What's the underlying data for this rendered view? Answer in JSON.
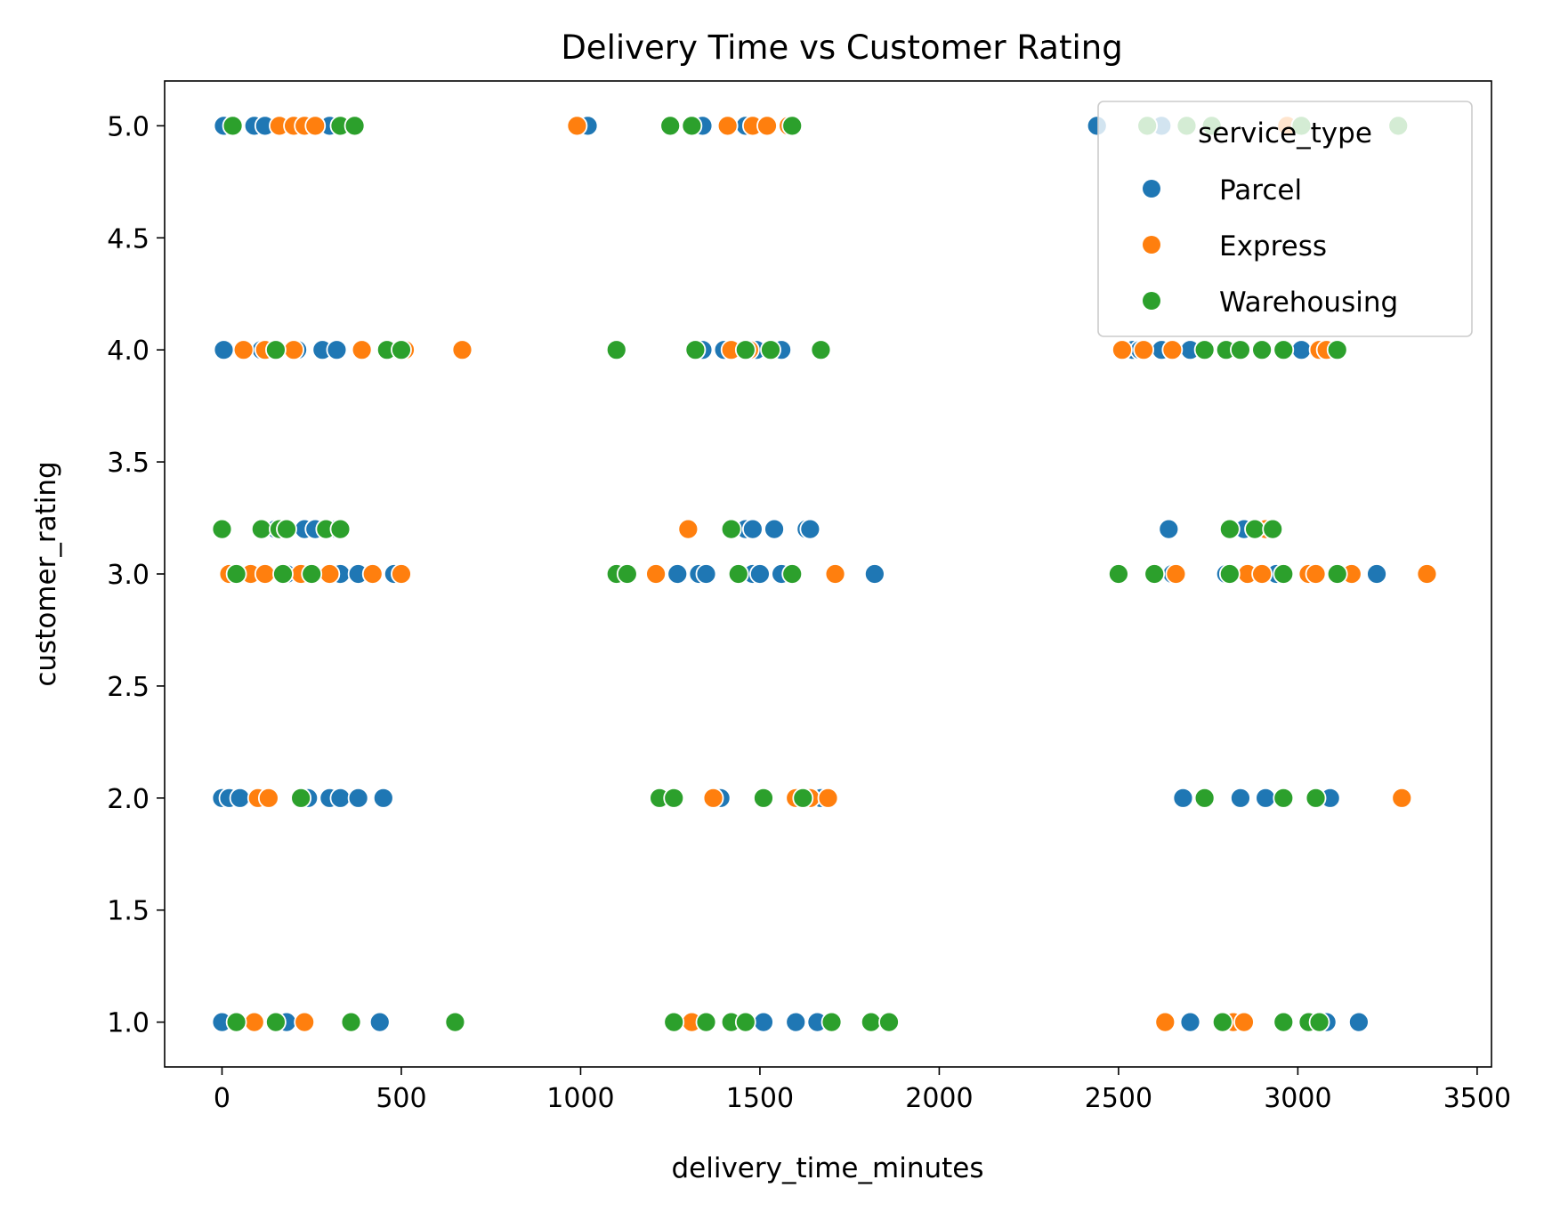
{
  "chart_data": {
    "type": "scatter",
    "title": "Delivery Time vs Customer Rating",
    "xlabel": "delivery_time_minutes",
    "ylabel": "customer_rating",
    "xlim": [
      -160,
      3540
    ],
    "ylim": [
      0.8,
      5.2
    ],
    "xticks": [
      0,
      500,
      1000,
      1500,
      2000,
      2500,
      3000,
      3500
    ],
    "yticks": [
      1.0,
      1.5,
      2.0,
      2.5,
      3.0,
      3.5,
      4.0,
      4.5,
      5.0
    ],
    "xtick_labels": [
      "0",
      "500",
      "1000",
      "1500",
      "2000",
      "2500",
      "3000",
      "3500"
    ],
    "ytick_labels": [
      "1.0",
      "1.5",
      "2.0",
      "2.5",
      "3.0",
      "3.5",
      "4.0",
      "4.5",
      "5.0"
    ],
    "grid": false,
    "legend": {
      "title": "service_type",
      "position": "top-right"
    },
    "series": [
      {
        "name": "Parcel",
        "color": "#1f77b4",
        "points": [
          [
            5,
            5.0
          ],
          [
            90,
            5.0
          ],
          [
            120,
            5.0
          ],
          [
            300,
            5.0
          ],
          [
            1020,
            5.0
          ],
          [
            1340,
            5.0
          ],
          [
            1460,
            5.0
          ],
          [
            2440,
            5.0
          ],
          [
            2620,
            5.0
          ],
          [
            5,
            4.0
          ],
          [
            60,
            4.0
          ],
          [
            110,
            4.0
          ],
          [
            150,
            4.0
          ],
          [
            210,
            4.0
          ],
          [
            280,
            4.0
          ],
          [
            320,
            4.0
          ],
          [
            1340,
            4.0
          ],
          [
            1400,
            4.0
          ],
          [
            1490,
            4.0
          ],
          [
            1560,
            4.0
          ],
          [
            2540,
            4.0
          ],
          [
            2560,
            4.0
          ],
          [
            2620,
            4.0
          ],
          [
            2700,
            4.0
          ],
          [
            2800,
            4.0
          ],
          [
            2960,
            4.0
          ],
          [
            3010,
            4.0
          ],
          [
            3100,
            4.0
          ],
          [
            150,
            3.2
          ],
          [
            230,
            3.2
          ],
          [
            260,
            3.2
          ],
          [
            320,
            3.2
          ],
          [
            1460,
            3.2
          ],
          [
            1480,
            3.2
          ],
          [
            1540,
            3.2
          ],
          [
            1630,
            3.2
          ],
          [
            1640,
            3.2
          ],
          [
            2640,
            3.2
          ],
          [
            2850,
            3.2
          ],
          [
            180,
            3.0
          ],
          [
            330,
            3.0
          ],
          [
            380,
            3.0
          ],
          [
            480,
            3.0
          ],
          [
            1270,
            3.0
          ],
          [
            1330,
            3.0
          ],
          [
            1350,
            3.0
          ],
          [
            1480,
            3.0
          ],
          [
            1500,
            3.0
          ],
          [
            1560,
            3.0
          ],
          [
            1820,
            3.0
          ],
          [
            2650,
            3.0
          ],
          [
            2800,
            3.0
          ],
          [
            2940,
            3.0
          ],
          [
            3220,
            3.0
          ],
          [
            0,
            2.0
          ],
          [
            20,
            2.0
          ],
          [
            50,
            2.0
          ],
          [
            240,
            2.0
          ],
          [
            300,
            2.0
          ],
          [
            330,
            2.0
          ],
          [
            380,
            2.0
          ],
          [
            450,
            2.0
          ],
          [
            1390,
            2.0
          ],
          [
            1670,
            2.0
          ],
          [
            2680,
            2.0
          ],
          [
            2840,
            2.0
          ],
          [
            2910,
            2.0
          ],
          [
            3090,
            2.0
          ],
          [
            0,
            1.0
          ],
          [
            180,
            1.0
          ],
          [
            440,
            1.0
          ],
          [
            1510,
            1.0
          ],
          [
            1600,
            1.0
          ],
          [
            1660,
            1.0
          ],
          [
            2700,
            1.0
          ],
          [
            3080,
            1.0
          ],
          [
            3170,
            1.0
          ]
        ]
      },
      {
        "name": "Express",
        "color": "#ff7f0e",
        "points": [
          [
            160,
            5.0
          ],
          [
            200,
            5.0
          ],
          [
            230,
            5.0
          ],
          [
            260,
            5.0
          ],
          [
            990,
            5.0
          ],
          [
            1410,
            5.0
          ],
          [
            1480,
            5.0
          ],
          [
            1520,
            5.0
          ],
          [
            1580,
            5.0
          ],
          [
            2970,
            5.0
          ],
          [
            60,
            4.0
          ],
          [
            120,
            4.0
          ],
          [
            200,
            4.0
          ],
          [
            390,
            4.0
          ],
          [
            510,
            4.0
          ],
          [
            670,
            4.0
          ],
          [
            1420,
            4.0
          ],
          [
            1470,
            4.0
          ],
          [
            2510,
            4.0
          ],
          [
            2570,
            4.0
          ],
          [
            2650,
            4.0
          ],
          [
            2840,
            4.0
          ],
          [
            3060,
            4.0
          ],
          [
            3080,
            4.0
          ],
          [
            20,
            3.0
          ],
          [
            80,
            3.0
          ],
          [
            120,
            3.0
          ],
          [
            220,
            3.0
          ],
          [
            300,
            3.0
          ],
          [
            420,
            3.0
          ],
          [
            500,
            3.0
          ],
          [
            1210,
            3.0
          ],
          [
            1710,
            3.0
          ],
          [
            2660,
            3.0
          ],
          [
            2860,
            3.0
          ],
          [
            2900,
            3.0
          ],
          [
            3030,
            3.0
          ],
          [
            3050,
            3.0
          ],
          [
            3150,
            3.0
          ],
          [
            3360,
            3.0
          ],
          [
            1300,
            3.2
          ],
          [
            2910,
            3.2
          ],
          [
            100,
            2.0
          ],
          [
            130,
            2.0
          ],
          [
            1370,
            2.0
          ],
          [
            1600,
            2.0
          ],
          [
            1640,
            2.0
          ],
          [
            1690,
            2.0
          ],
          [
            3290,
            2.0
          ],
          [
            90,
            1.0
          ],
          [
            230,
            1.0
          ],
          [
            1310,
            1.0
          ],
          [
            2630,
            1.0
          ],
          [
            2820,
            1.0
          ],
          [
            2850,
            1.0
          ]
        ]
      },
      {
        "name": "Warehousing",
        "color": "#2ca02c",
        "points": [
          [
            30,
            5.0
          ],
          [
            330,
            5.0
          ],
          [
            370,
            5.0
          ],
          [
            1250,
            5.0
          ],
          [
            1310,
            5.0
          ],
          [
            1590,
            5.0
          ],
          [
            2580,
            5.0
          ],
          [
            2690,
            5.0
          ],
          [
            2760,
            5.0
          ],
          [
            3010,
            5.0
          ],
          [
            3280,
            5.0
          ],
          [
            150,
            4.0
          ],
          [
            460,
            4.0
          ],
          [
            500,
            4.0
          ],
          [
            1100,
            4.0
          ],
          [
            1320,
            4.0
          ],
          [
            1460,
            4.0
          ],
          [
            1530,
            4.0
          ],
          [
            1670,
            4.0
          ],
          [
            2740,
            4.0
          ],
          [
            2800,
            4.0
          ],
          [
            2840,
            4.0
          ],
          [
            2900,
            4.0
          ],
          [
            2960,
            4.0
          ],
          [
            3110,
            4.0
          ],
          [
            0,
            3.2
          ],
          [
            110,
            3.2
          ],
          [
            160,
            3.2
          ],
          [
            180,
            3.2
          ],
          [
            290,
            3.2
          ],
          [
            330,
            3.2
          ],
          [
            1420,
            3.2
          ],
          [
            2810,
            3.2
          ],
          [
            2880,
            3.2
          ],
          [
            2930,
            3.2
          ],
          [
            40,
            3.0
          ],
          [
            170,
            3.0
          ],
          [
            250,
            3.0
          ],
          [
            1100,
            3.0
          ],
          [
            1130,
            3.0
          ],
          [
            1440,
            3.0
          ],
          [
            1590,
            3.0
          ],
          [
            2500,
            3.0
          ],
          [
            2600,
            3.0
          ],
          [
            2810,
            3.0
          ],
          [
            2960,
            3.0
          ],
          [
            3110,
            3.0
          ],
          [
            220,
            2.0
          ],
          [
            1220,
            2.0
          ],
          [
            1260,
            2.0
          ],
          [
            1510,
            2.0
          ],
          [
            1620,
            2.0
          ],
          [
            2740,
            2.0
          ],
          [
            2960,
            2.0
          ],
          [
            3050,
            2.0
          ],
          [
            40,
            1.0
          ],
          [
            150,
            1.0
          ],
          [
            360,
            1.0
          ],
          [
            650,
            1.0
          ],
          [
            1260,
            1.0
          ],
          [
            1350,
            1.0
          ],
          [
            1420,
            1.0
          ],
          [
            1460,
            1.0
          ],
          [
            1700,
            1.0
          ],
          [
            1810,
            1.0
          ],
          [
            1860,
            1.0
          ],
          [
            2790,
            1.0
          ],
          [
            2960,
            1.0
          ],
          [
            3030,
            1.0
          ],
          [
            3060,
            1.0
          ]
        ]
      }
    ]
  }
}
